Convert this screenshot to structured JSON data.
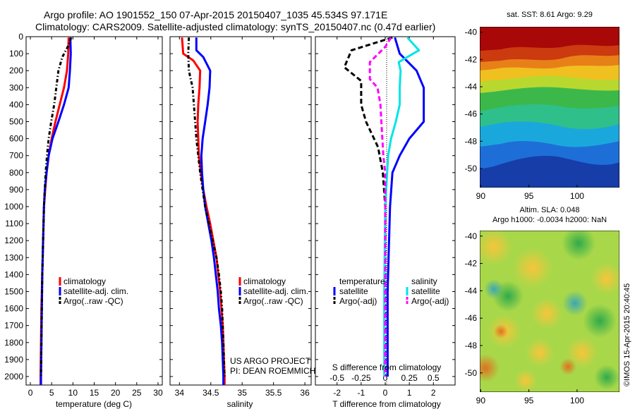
{
  "header": {
    "line1": "Argo profile: AO 1901552_150 07-Apr-2015 20150407_1035 45.534S 97.171E",
    "line2": "Climatology: CARS2009. Satellite-adjusted climatology: synTS_20150407.nc (0.47d earlier)"
  },
  "colors": {
    "climatology": "#ff0000",
    "satellite": "#0000ff",
    "argo": "#000000",
    "satellite_salinity": "#00e5e5",
    "argo_salinity": "#ff00ff"
  },
  "chart_data": [
    {
      "id": "temperature",
      "type": "line",
      "xlabel": "temperature (deg C)",
      "ylabel": "",
      "xlim": [
        -1,
        31
      ],
      "ylim": [
        2050,
        0
      ],
      "xticks": [
        "0",
        "5",
        "10",
        "15",
        "20",
        "25",
        "30"
      ],
      "xtick_values": [
        0,
        5,
        10,
        15,
        20,
        25,
        30
      ],
      "yticks": [
        "0",
        "100",
        "200",
        "300",
        "400",
        "500",
        "600",
        "700",
        "800",
        "900",
        "1000",
        "1100",
        "1200",
        "1300",
        "1400",
        "1500",
        "1600",
        "1700",
        "1800",
        "1900",
        "2000"
      ],
      "ytick_values": [
        0,
        100,
        200,
        300,
        400,
        500,
        600,
        700,
        800,
        900,
        1000,
        1100,
        1200,
        1300,
        1400,
        1500,
        1600,
        1700,
        1800,
        1900,
        2000
      ],
      "legend": [
        "climatology",
        "satellite-adj. clim.",
        "Argo(..raw -QC)"
      ],
      "series": [
        {
          "name": "climatology",
          "style": "solid",
          "color": "#ff0000",
          "points": [
            [
              9.0,
              5
            ],
            [
              8.9,
              100
            ],
            [
              8.6,
              200
            ],
            [
              7.9,
              300
            ],
            [
              6.9,
              400
            ],
            [
              5.9,
              500
            ],
            [
              5.0,
              600
            ],
            [
              4.3,
              700
            ],
            [
              3.8,
              800
            ],
            [
              3.5,
              900
            ],
            [
              3.2,
              1000
            ],
            [
              3.0,
              1200
            ],
            [
              2.8,
              1400
            ],
            [
              2.6,
              1600
            ],
            [
              2.5,
              1800
            ],
            [
              2.4,
              2000
            ],
            [
              2.4,
              2050
            ]
          ]
        },
        {
          "name": "satellite-adj. clim.",
          "style": "solid",
          "color": "#0000ff",
          "points": [
            [
              9.4,
              5
            ],
            [
              9.5,
              100
            ],
            [
              9.3,
              200
            ],
            [
              9.0,
              300
            ],
            [
              7.9,
              400
            ],
            [
              6.6,
              500
            ],
            [
              5.2,
              600
            ],
            [
              4.3,
              700
            ],
            [
              3.8,
              800
            ],
            [
              3.4,
              900
            ],
            [
              3.2,
              1000
            ],
            [
              3.0,
              1200
            ],
            [
              2.8,
              1400
            ],
            [
              2.7,
              1600
            ],
            [
              2.6,
              1800
            ],
            [
              2.5,
              2000
            ],
            [
              2.5,
              2050
            ]
          ]
        },
        {
          "name": "Argo(..raw -QC)",
          "style": "dash-dot",
          "color": "#000000",
          "points": [
            [
              9.6,
              5
            ],
            [
              9.0,
              50
            ],
            [
              7.5,
              120
            ],
            [
              6.6,
              200
            ],
            [
              6.1,
              300
            ],
            [
              5.6,
              400
            ],
            [
              4.9,
              500
            ],
            [
              4.3,
              600
            ],
            [
              3.9,
              700
            ],
            [
              3.6,
              800
            ],
            [
              3.4,
              900
            ],
            [
              3.2,
              1000
            ],
            [
              3.0,
              1200
            ],
            [
              2.8,
              1400
            ],
            [
              2.7,
              1600
            ],
            [
              2.6,
              1800
            ],
            [
              2.5,
              2000
            ]
          ]
        }
      ]
    },
    {
      "id": "salinity",
      "type": "line",
      "xlabel": "salinity",
      "ylabel": "",
      "xlim": [
        33.85,
        36.1
      ],
      "ylim": [
        2050,
        0
      ],
      "xticks": [
        "34",
        "34.5",
        "35",
        "35.5",
        "36"
      ],
      "xtick_values": [
        34,
        34.5,
        35,
        35.5,
        36
      ],
      "legend": [
        "climatology",
        "satellite-adj. clim.",
        "Argo(..raw -QC)"
      ],
      "annotations": [
        "US ARGO PROJECT",
        "PI: DEAN ROEMMICH"
      ],
      "series": [
        {
          "name": "climatology",
          "style": "solid",
          "color": "#ff0000",
          "points": [
            [
              34.04,
              5
            ],
            [
              34.06,
              100
            ],
            [
              34.22,
              140
            ],
            [
              34.33,
              200
            ],
            [
              34.32,
              300
            ],
            [
              34.3,
              400
            ],
            [
              34.29,
              500
            ],
            [
              34.3,
              600
            ],
            [
              34.31,
              700
            ],
            [
              34.34,
              800
            ],
            [
              34.38,
              900
            ],
            [
              34.43,
              1000
            ],
            [
              34.49,
              1100
            ],
            [
              34.54,
              1200
            ],
            [
              34.59,
              1300
            ],
            [
              34.62,
              1400
            ],
            [
              34.65,
              1500
            ],
            [
              34.67,
              1600
            ],
            [
              34.69,
              1700
            ],
            [
              34.7,
              1800
            ],
            [
              34.71,
              1900
            ],
            [
              34.72,
              2000
            ],
            [
              34.72,
              2050
            ]
          ]
        },
        {
          "name": "satellite-adj. clim.",
          "style": "solid",
          "color": "#0000ff",
          "points": [
            [
              34.27,
              5
            ],
            [
              34.27,
              80
            ],
            [
              34.38,
              120
            ],
            [
              34.49,
              200
            ],
            [
              34.48,
              300
            ],
            [
              34.45,
              400
            ],
            [
              34.41,
              500
            ],
            [
              34.37,
              600
            ],
            [
              34.35,
              700
            ],
            [
              34.36,
              800
            ],
            [
              34.38,
              900
            ],
            [
              34.41,
              1000
            ],
            [
              34.46,
              1100
            ],
            [
              34.51,
              1200
            ],
            [
              34.55,
              1300
            ],
            [
              34.58,
              1400
            ],
            [
              34.61,
              1500
            ],
            [
              34.63,
              1600
            ],
            [
              34.66,
              1700
            ],
            [
              34.68,
              1800
            ],
            [
              34.69,
              1900
            ],
            [
              34.7,
              2000
            ],
            [
              34.7,
              2050
            ]
          ]
        },
        {
          "name": "Argo(..raw -QC)",
          "style": "dash-dot",
          "color": "#000000",
          "points": [
            [
              34.15,
              5
            ],
            [
              34.14,
              100
            ],
            [
              34.15,
              200
            ],
            [
              34.21,
              300
            ],
            [
              34.23,
              400
            ],
            [
              34.25,
              500
            ],
            [
              34.27,
              600
            ],
            [
              34.3,
              700
            ],
            [
              34.33,
              800
            ],
            [
              34.37,
              900
            ],
            [
              34.41,
              1000
            ],
            [
              34.47,
              1100
            ],
            [
              34.53,
              1200
            ],
            [
              34.59,
              1300
            ],
            [
              34.63,
              1400
            ],
            [
              34.66,
              1500
            ],
            [
              34.68,
              1600
            ],
            [
              34.69,
              1700
            ],
            [
              34.7,
              1800
            ],
            [
              34.71,
              1900
            ],
            [
              34.72,
              2000
            ]
          ]
        }
      ]
    },
    {
      "id": "difference",
      "type": "line",
      "xlabel": "T difference from climatology",
      "x2label": "S difference from climatology",
      "ylabel": "",
      "xlim": [
        -2.9,
        2.9
      ],
      "x2lim": [
        -0.725,
        0.725
      ],
      "ylim": [
        2050,
        0
      ],
      "xticks": [
        "-2",
        "-1",
        "0",
        "1",
        "2"
      ],
      "xtick_values": [
        -2,
        -1,
        0,
        1,
        2
      ],
      "x2ticks": [
        "-0.5",
        "-0.25",
        "0",
        "0.25",
        "0.5"
      ],
      "x2tick_values": [
        -0.5,
        -0.25,
        0,
        0.25,
        0.5
      ],
      "legend_headers": [
        "temperature",
        "salinity"
      ],
      "legend": [
        "satellite",
        "Argo(-adj)",
        "satellite",
        "Argo(-adj)"
      ],
      "series": [
        {
          "name": "satellite",
          "group": "temperature",
          "axis": "T",
          "style": "solid",
          "color": "#0000ff",
          "points": [
            [
              0.4,
              5
            ],
            [
              0.6,
              100
            ],
            [
              1.3,
              200
            ],
            [
              1.6,
              300
            ],
            [
              1.6,
              400
            ],
            [
              1.6,
              500
            ],
            [
              1.0,
              600
            ],
            [
              0.6,
              700
            ],
            [
              0.3,
              800
            ],
            [
              0.2,
              1000
            ],
            [
              0.1,
              1500
            ],
            [
              0.1,
              2000
            ]
          ]
        },
        {
          "name": "Argo(-adj)",
          "group": "temperature",
          "axis": "T",
          "style": "dashed",
          "color": "#000000",
          "points": [
            [
              0.3,
              5
            ],
            [
              -1.4,
              80
            ],
            [
              -1.7,
              180
            ],
            [
              -1.0,
              260
            ],
            [
              -1.0,
              400
            ],
            [
              -0.8,
              500
            ],
            [
              -0.3,
              650
            ],
            [
              -0.1,
              800
            ],
            [
              0.0,
              1000
            ],
            [
              0.0,
              1500
            ],
            [
              0.0,
              2000
            ]
          ]
        },
        {
          "name": "satellite",
          "group": "salinity",
          "axis": "S",
          "style": "solid",
          "color": "#00e5e5",
          "points": [
            [
              0.23,
              5
            ],
            [
              0.35,
              80
            ],
            [
              0.14,
              150
            ],
            [
              0.16,
              200
            ],
            [
              0.15,
              300
            ],
            [
              0.15,
              400
            ],
            [
              0.11,
              500
            ],
            [
              0.06,
              600
            ],
            [
              0.03,
              700
            ],
            [
              0.02,
              800
            ],
            [
              0.0,
              1000
            ],
            [
              -0.01,
              1500
            ],
            [
              -0.01,
              2000
            ]
          ]
        },
        {
          "name": "Argo(-adj)",
          "group": "salinity",
          "axis": "S",
          "style": "dashed",
          "color": "#ff00ff",
          "points": [
            [
              0.06,
              5
            ],
            [
              0.0,
              60
            ],
            [
              -0.16,
              150
            ],
            [
              -0.16,
              250
            ],
            [
              -0.08,
              300
            ],
            [
              -0.05,
              400
            ],
            [
              -0.04,
              500
            ],
            [
              -0.03,
              600
            ],
            [
              -0.02,
              700
            ],
            [
              0.0,
              800
            ],
            [
              0.0,
              1000
            ],
            [
              0.0,
              2000
            ]
          ]
        }
      ]
    },
    {
      "id": "sst-map",
      "type": "heatmap",
      "title": "sat. SST: 8.61  Argo: 9.29",
      "xticks": [
        "90",
        "95",
        "100"
      ],
      "xtick_values": [
        90,
        95,
        100
      ],
      "yticks": [
        "-40",
        "-42",
        "-44",
        "-46",
        "-48",
        "-50"
      ],
      "ytick_values": [
        -40,
        -42,
        -44,
        -46,
        -48,
        -50
      ],
      "xlim": [
        89.9,
        104.4
      ],
      "ylim": [
        -51.4,
        -39.6
      ]
    },
    {
      "id": "sla-map",
      "type": "heatmap",
      "title": "Altim. SLA: 0.048",
      "subtitle": "Argo h1000: -0.0034 h2000: NaN",
      "xticks": [
        "90",
        "95",
        "100"
      ],
      "xtick_values": [
        90,
        95,
        100
      ],
      "yticks": [
        "-40",
        "-42",
        "-44",
        "-46",
        "-48",
        "-50"
      ],
      "ytick_values": [
        -40,
        -42,
        -44,
        -46,
        -48,
        -50
      ],
      "xlim": [
        89.9,
        104.4
      ],
      "ylim": [
        -51.4,
        -39.6
      ]
    }
  ],
  "credit": "©IMOS 15-Apr-2015 20:40:45"
}
